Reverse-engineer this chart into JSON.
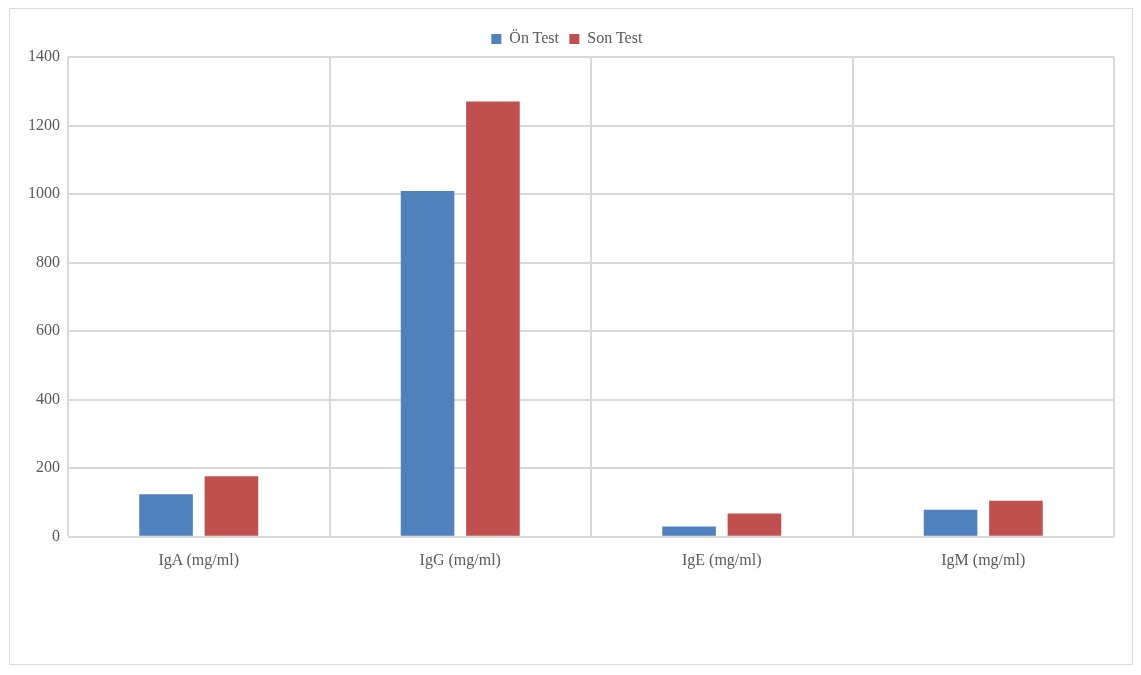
{
  "chart_data": {
    "type": "bar",
    "categories": [
      "IgA (mg/ml)",
      "IgG (mg/ml)",
      "IgE (mg/ml)",
      "IgM (mg/ml)"
    ],
    "series": [
      {
        "name": "Ön Test",
        "color": "#4f81bd",
        "values": [
          124,
          1009,
          30,
          79
        ]
      },
      {
        "name": "Son Test",
        "color": "#c0504d",
        "values": [
          177,
          1270,
          68,
          105
        ]
      }
    ],
    "ylim": [
      0,
      1400
    ],
    "yticks": [
      0,
      200,
      400,
      600,
      800,
      1000,
      1200,
      1400
    ],
    "grid": true,
    "legend": "top"
  }
}
